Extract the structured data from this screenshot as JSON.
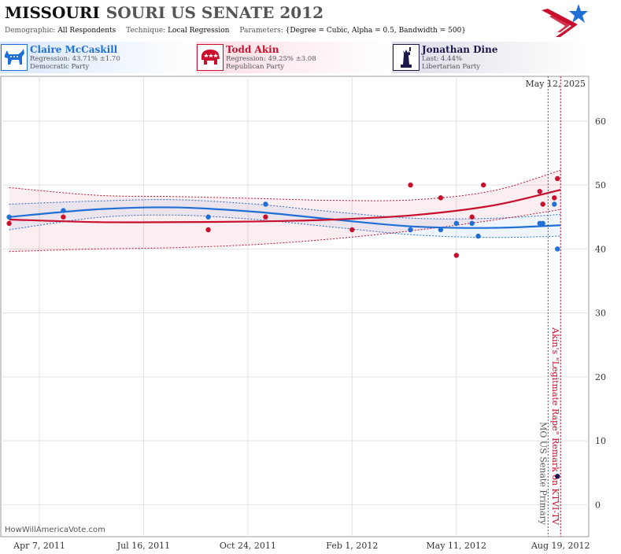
{
  "header": {
    "title_state": "MISSOURI",
    "title_rest": "SOURI US SENATE 2012",
    "demographic_label": "Demographic:",
    "demographic_value": "All Respondents",
    "technique_label": "Technique:",
    "technique_value": "Local Regression",
    "parameters_label": "Parameters:",
    "parameters_value": "{Degree = Cubic, Alpha = 0.5, Bandwidth = 500}"
  },
  "candidates": [
    {
      "name": "Claire McCaskill",
      "line1": "Regression: 43.71% ±1.70",
      "line2": "Democratic Party",
      "color": "#1f6fd6",
      "icon": "donkey-icon"
    },
    {
      "name": "Todd Akin",
      "line1": "Regression: 49.25% ±3.08",
      "line2": "Republican Party",
      "color": "#c8102e",
      "icon": "elephant-icon"
    },
    {
      "name": "Jonathan Dine",
      "line1": "Last: 4.44%",
      "line2": "Libertarian Party",
      "color": "#1c1a4a",
      "icon": "statue-of-liberty-icon"
    }
  ],
  "footer": {
    "source": "HowWillAmericaVote.com"
  },
  "chart_data": {
    "type": "scatter",
    "x_tick_labels": [
      "Apr 7, 2011",
      "Jul 16, 2011",
      "Oct 24, 2011",
      "Feb 1, 2012",
      "May 11, 2012",
      "Aug 19, 2012"
    ],
    "x_tick_dates": [
      "2011-04-07",
      "2011-07-16",
      "2011-10-24",
      "2012-02-01",
      "2012-05-11",
      "2012-08-19"
    ],
    "xlim": [
      "2011-03-01",
      "2012-09-15"
    ],
    "ylim": [
      -5,
      67
    ],
    "y_ticks": [
      0,
      10,
      20,
      30,
      40,
      50,
      60
    ],
    "date_label": "May 12, 2025",
    "grid": true,
    "annotations": [
      {
        "date": "2012-08-07",
        "text": "MO US Senate Primary",
        "color": "#555555"
      },
      {
        "date": "2012-08-19",
        "text": "Akin's \"Legitmate Rape\" Remark on KTVI-TV",
        "color": "#c8102e"
      }
    ],
    "series": [
      {
        "name": "Claire McCaskill",
        "color": "#1f6fd6",
        "points": [
          {
            "x": "2011-03-09",
            "y": 45
          },
          {
            "x": "2011-04-30",
            "y": 46
          },
          {
            "x": "2011-09-16",
            "y": 45
          },
          {
            "x": "2011-11-10",
            "y": 47
          },
          {
            "x": "2012-03-28",
            "y": 43
          },
          {
            "x": "2012-04-26",
            "y": 43
          },
          {
            "x": "2012-05-11",
            "y": 44
          },
          {
            "x": "2012-05-26",
            "y": 44
          },
          {
            "x": "2012-06-01",
            "y": 42
          },
          {
            "x": "2012-07-30",
            "y": 44
          },
          {
            "x": "2012-08-02",
            "y": 44
          },
          {
            "x": "2012-08-13",
            "y": 47
          },
          {
            "x": "2012-08-16",
            "y": 40
          }
        ],
        "trend": [
          {
            "x": "2011-03-09",
            "y": 45.0
          },
          {
            "x": "2011-06-01",
            "y": 46.2
          },
          {
            "x": "2011-08-15",
            "y": 46.5
          },
          {
            "x": "2011-11-01",
            "y": 45.8
          },
          {
            "x": "2012-01-15",
            "y": 44.6
          },
          {
            "x": "2012-04-01",
            "y": 43.5
          },
          {
            "x": "2012-06-15",
            "y": 43.3
          },
          {
            "x": "2012-08-19",
            "y": 43.71
          }
        ],
        "band": [
          2.0,
          1.3,
          1.2,
          1.2,
          1.2,
          1.3,
          1.5,
          1.7
        ]
      },
      {
        "name": "Todd Akin",
        "color": "#c8102e",
        "points": [
          {
            "x": "2011-03-09",
            "y": 44
          },
          {
            "x": "2011-04-30",
            "y": 45
          },
          {
            "x": "2011-09-16",
            "y": 43
          },
          {
            "x": "2011-11-10",
            "y": 45
          },
          {
            "x": "2012-02-01",
            "y": 43
          },
          {
            "x": "2012-03-28",
            "y": 50
          },
          {
            "x": "2012-04-26",
            "y": 48
          },
          {
            "x": "2012-05-11",
            "y": 39
          },
          {
            "x": "2012-05-26",
            "y": 45
          },
          {
            "x": "2012-06-06",
            "y": 50
          },
          {
            "x": "2012-07-30",
            "y": 49
          },
          {
            "x": "2012-08-02",
            "y": 47
          },
          {
            "x": "2012-08-13",
            "y": 48
          },
          {
            "x": "2012-08-16",
            "y": 51
          }
        ],
        "trend": [
          {
            "x": "2011-03-09",
            "y": 44.6
          },
          {
            "x": "2011-06-01",
            "y": 44.2
          },
          {
            "x": "2011-08-15",
            "y": 44.2
          },
          {
            "x": "2011-11-01",
            "y": 44.3
          },
          {
            "x": "2012-01-15",
            "y": 44.6
          },
          {
            "x": "2012-04-01",
            "y": 45.3
          },
          {
            "x": "2012-06-15",
            "y": 46.8
          },
          {
            "x": "2012-08-19",
            "y": 49.25
          }
        ],
        "band": [
          5.0,
          4.2,
          4.0,
          3.6,
          3.0,
          2.4,
          2.3,
          3.08
        ]
      },
      {
        "name": "Jonathan Dine",
        "color": "#1c1a4a",
        "points": [
          {
            "x": "2012-08-16",
            "y": 4.44
          }
        ]
      }
    ]
  }
}
